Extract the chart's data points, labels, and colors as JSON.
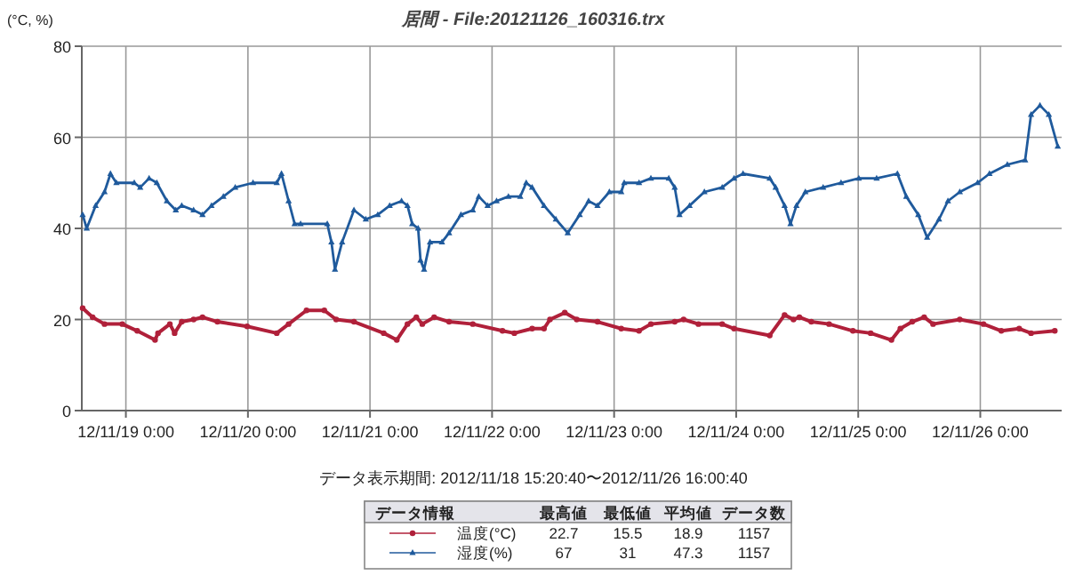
{
  "chart_data": {
    "type": "line",
    "title": "居間 - File:20121126_160316.trx",
    "ylabel": "(°C, %)",
    "xlim": [
      "2012-11-18T15:20",
      "2012-11-26T16:00"
    ],
    "xticks": [
      {
        "value": "2012-11-19T00:00",
        "label": "12/11/19 0:00"
      },
      {
        "value": "2012-11-20T00:00",
        "label": "12/11/20 0:00"
      },
      {
        "value": "2012-11-21T00:00",
        "label": "12/11/21 0:00"
      },
      {
        "value": "2012-11-22T00:00",
        "label": "12/11/22 0:00"
      },
      {
        "value": "2012-11-23T00:00",
        "label": "12/11/23 0:00"
      },
      {
        "value": "2012-11-24T00:00",
        "label": "12/11/24 0:00"
      },
      {
        "value": "2012-11-25T00:00",
        "label": "12/11/25 0:00"
      },
      {
        "value": "2012-11-26T00:00",
        "label": "12/11/26 0:00"
      }
    ],
    "ylim": [
      0,
      80
    ],
    "yticks": [
      0,
      20,
      40,
      60,
      80
    ],
    "grid": true,
    "legend": "bottom",
    "legend_title": "データ情報",
    "series": [
      {
        "name": "温度(°C)",
        "color": "#b0203a",
        "marker": "circle",
        "x": [
          "2012-11-18T15:30",
          "2012-11-18T17:28",
          "2012-11-18T19:48",
          "2012-11-18T23:18",
          "2012-11-19T02:14",
          "2012-11-19T05:44",
          "2012-11-19T06:19",
          "2012-11-19T08:39",
          "2012-11-19T09:35",
          "2012-11-19T10:59",
          "2012-11-19T13:19",
          "2012-11-19T15:04",
          "2012-11-19T18:00",
          "2012-11-19T23:50",
          "2012-11-20T05:40",
          "2012-11-20T08:00",
          "2012-11-20T11:31",
          "2012-11-20T15:01",
          "2012-11-20T17:21",
          "2012-11-20T20:51",
          "2012-11-21T02:42",
          "2012-11-21T05:16",
          "2012-11-21T07:22",
          "2012-11-21T09:07",
          "2012-11-21T10:17",
          "2012-11-21T12:37",
          "2012-11-21T15:33",
          "2012-11-21T20:13",
          "2012-11-22T02:03",
          "2012-11-22T04:23",
          "2012-11-22T07:53",
          "2012-11-22T10:13",
          "2012-11-22T11:23",
          "2012-11-22T14:18",
          "2012-11-22T16:39",
          "2012-11-22T20:44",
          "2012-11-23T01:24",
          "2012-11-23T04:54",
          "2012-11-23T07:14",
          "2012-11-23T11:55",
          "2012-11-23T13:40",
          "2012-11-23T16:35",
          "2012-11-23T21:15",
          "2012-11-23T23:35",
          "2012-11-24T06:36",
          "2012-11-24T09:31",
          "2012-11-24T11:16",
          "2012-11-24T12:26",
          "2012-11-24T14:46",
          "2012-11-24T18:16",
          "2012-11-24T22:57",
          "2012-11-25T02:27",
          "2012-11-25T06:32",
          "2012-11-25T08:17",
          "2012-11-25T10:37",
          "2012-11-25T12:58",
          "2012-11-25T14:43",
          "2012-11-25T19:58",
          "2012-11-26T00:38",
          "2012-11-26T04:08",
          "2012-11-26T07:39",
          "2012-11-26T09:59",
          "2012-11-26T14:39"
        ],
        "values": [
          22.5,
          20.5,
          19,
          19,
          17.5,
          15.5,
          17,
          19,
          17,
          19.5,
          20,
          20.5,
          19.5,
          18.5,
          17,
          19,
          22,
          22,
          20,
          19.5,
          17,
          15.5,
          19,
          20.5,
          19,
          20.5,
          19.5,
          19,
          17.5,
          17,
          18,
          18,
          20,
          21.5,
          20,
          19.5,
          18,
          17.5,
          19,
          19.5,
          20,
          19,
          19,
          18,
          16.5,
          21,
          20,
          20.5,
          19.5,
          19,
          17.5,
          17,
          15.5,
          18,
          19.5,
          20.5,
          19,
          20,
          19,
          17.5,
          18,
          17,
          17.5
        ]
      },
      {
        "name": "湿度(%)",
        "color": "#1f5a9c",
        "marker": "triangle",
        "x": [
          "2012-11-18T15:30",
          "2012-11-18T16:18",
          "2012-11-18T18:03",
          "2012-11-18T19:48",
          "2012-11-18T20:58",
          "2012-11-18T22:08",
          "2012-11-19T01:39",
          "2012-11-19T02:49",
          "2012-11-19T04:34",
          "2012-11-19T06:05",
          "2012-11-19T08:04",
          "2012-11-19T09:49",
          "2012-11-19T10:59",
          "2012-11-19T13:19",
          "2012-11-19T15:04",
          "2012-11-19T16:50",
          "2012-11-19T19:10",
          "2012-11-19T21:30",
          "2012-11-20T01:00",
          "2012-11-20T05:40",
          "2012-11-20T06:36",
          "2012-11-20T08:00",
          "2012-11-20T09:11",
          "2012-11-20T10:21",
          "2012-11-20T15:36",
          "2012-11-20T16:25",
          "2012-11-20T17:07",
          "2012-11-20T18:31",
          "2012-11-20T20:51",
          "2012-11-20T23:11",
          "2012-11-21T01:32",
          "2012-11-21T03:52",
          "2012-11-21T06:12",
          "2012-11-21T07:22",
          "2012-11-21T08:18",
          "2012-11-21T09:28",
          "2012-11-21T09:56",
          "2012-11-21T10:38",
          "2012-11-21T11:48",
          "2012-11-21T14:09",
          "2012-11-21T15:33",
          "2012-11-21T17:53",
          "2012-11-21T20:13",
          "2012-11-21T21:23",
          "2012-11-21T23:08",
          "2012-11-22T00:53",
          "2012-11-22T03:13",
          "2012-11-22T05:33",
          "2012-11-22T06:43",
          "2012-11-22T07:53",
          "2012-11-22T10:13",
          "2012-11-22T12:33",
          "2012-11-22T14:53",
          "2012-11-22T17:14",
          "2012-11-22T18:59",
          "2012-11-22T20:44",
          "2012-11-22T23:04",
          "2012-11-23T01:24",
          "2012-11-23T01:59",
          "2012-11-23T04:54",
          "2012-11-23T07:14",
          "2012-11-23T10:45",
          "2012-11-23T11:55",
          "2012-11-23T12:51",
          "2012-11-23T14:50",
          "2012-11-23T17:45",
          "2012-11-23T21:15",
          "2012-11-23T23:35",
          "2012-11-24T01:21",
          "2012-11-24T06:36",
          "2012-11-24T07:46",
          "2012-11-24T09:31",
          "2012-11-24T10:41",
          "2012-11-24T11:51",
          "2012-11-24T13:36",
          "2012-11-24T17:06",
          "2012-11-24T20:37",
          "2012-11-25T00:07",
          "2012-11-25T03:37",
          "2012-11-25T07:42",
          "2012-11-25T09:27",
          "2012-11-25T11:48",
          "2012-11-25T13:33",
          "2012-11-25T15:53",
          "2012-11-25T17:38",
          "2012-11-25T19:58",
          "2012-11-25T23:28",
          "2012-11-26T01:48",
          "2012-11-26T05:19",
          "2012-11-26T08:49",
          "2012-11-26T09:59",
          "2012-11-26T11:44",
          "2012-11-26T13:29",
          "2012-11-26T15:14"
        ],
        "values": [
          43,
          40,
          45,
          48,
          52,
          50,
          50,
          49,
          51,
          50,
          46,
          44,
          45,
          44,
          43,
          45,
          47,
          49,
          50,
          50,
          52,
          46,
          41,
          41,
          41,
          37,
          31,
          37,
          44,
          42,
          43,
          45,
          46,
          45,
          41,
          40,
          33,
          31,
          37,
          37,
          39,
          43,
          44,
          47,
          45,
          46,
          47,
          47,
          50,
          49,
          45,
          42,
          39,
          43,
          46,
          45,
          48,
          48,
          50,
          50,
          51,
          51,
          49,
          43,
          45,
          48,
          49,
          51,
          52,
          51,
          49,
          45,
          41,
          45,
          48,
          49,
          50,
          51,
          51,
          52,
          47,
          43,
          38,
          42,
          46,
          48,
          50,
          52,
          54,
          55,
          65,
          67,
          65,
          58
        ]
      }
    ],
    "annotations": [
      "データ表示期間: 2012/11/18  15:20:40〜2012/11/26  16:00:40",
      "最高値",
      "最低値",
      "平均値",
      "データ数",
      "22.7",
      "15.5",
      "18.9",
      "1157",
      "67",
      "31",
      "47.3",
      "1157"
    ]
  }
}
